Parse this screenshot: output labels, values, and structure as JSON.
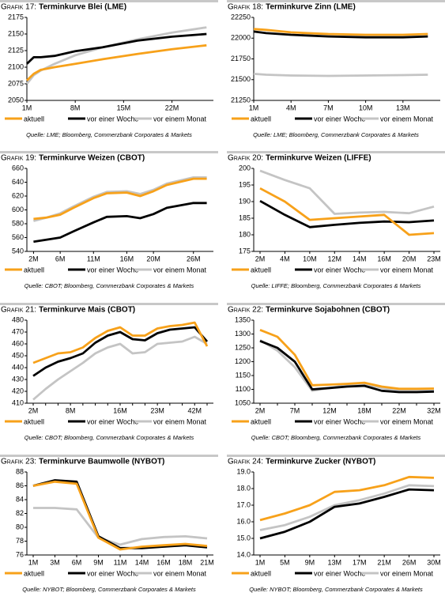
{
  "chart_data": [
    {
      "type": "line",
      "label": "Grafik 17:",
      "title": "Terminkurve Blei (LME)",
      "x": [
        1,
        2,
        3,
        5,
        8,
        12,
        17,
        22,
        27
      ],
      "xlim": [
        1,
        28
      ],
      "xticks": [
        {
          "value": 1,
          "label": "1M"
        },
        {
          "value": 8,
          "label": "8M"
        },
        {
          "value": 15,
          "label": "15M"
        },
        {
          "value": 22,
          "label": "22M"
        }
      ],
      "ylim": [
        2050,
        2175
      ],
      "yticks": [
        2050,
        2075,
        2100,
        2125,
        2150,
        2175
      ],
      "series": [
        {
          "name": "aktuell",
          "color": "#f7a11a",
          "values": [
            2080,
            2090,
            2096,
            2100,
            2105,
            2112,
            2120,
            2127,
            2133
          ]
        },
        {
          "name": "vor einer Woche",
          "color": "#000000",
          "values": [
            2105,
            2115,
            2115,
            2117,
            2124,
            2130,
            2140,
            2146,
            2150
          ]
        },
        {
          "name": "vor einem Monat",
          "color": "#c4c4c4",
          "values": [
            2075,
            2088,
            2095,
            2105,
            2118,
            2130,
            2142,
            2152,
            2160
          ]
        }
      ],
      "source": "Quelle: LME; Bloomberg, Commerzbank Corporates & Markets"
    },
    {
      "type": "line",
      "label": "Grafik 18:",
      "title": "Terminkurve Zinn (LME)",
      "x": [
        1,
        2,
        4,
        7,
        10,
        13,
        15
      ],
      "xlim": [
        1,
        16
      ],
      "xticks": [
        {
          "value": 1,
          "label": "1M"
        },
        {
          "value": 4,
          "label": "4M"
        },
        {
          "value": 7,
          "label": "7M"
        },
        {
          "value": 10,
          "label": "10M"
        },
        {
          "value": 13,
          "label": "13M"
        }
      ],
      "ylim": [
        21250,
        22250
      ],
      "yticks": [
        21250,
        21500,
        21750,
        22000,
        22250
      ],
      "series": [
        {
          "name": "aktuell",
          "color": "#f7a11a",
          "values": [
            22110,
            22100,
            22070,
            22050,
            22040,
            22040,
            22050
          ]
        },
        {
          "name": "vor einer Woche",
          "color": "#000000",
          "values": [
            22080,
            22060,
            22040,
            22020,
            22010,
            22010,
            22020
          ]
        },
        {
          "name": "vor einem Monat",
          "color": "#c4c4c4",
          "values": [
            21570,
            21560,
            21550,
            21545,
            21550,
            21555,
            21560
          ]
        }
      ],
      "source": "Quelle: LME; Bloomberg, Commerzbank Corporates & Markets"
    },
    {
      "type": "line",
      "label": "Grafik 19:",
      "title": "Terminkurve Weizen (CBOT)",
      "x": [
        2,
        4,
        6,
        8,
        11,
        13,
        16,
        18,
        20,
        22,
        26,
        28
      ],
      "xlim": [
        1,
        29
      ],
      "xticks": [
        {
          "value": 2,
          "label": "2M"
        },
        {
          "value": 6,
          "label": "6M"
        },
        {
          "value": 11,
          "label": "11M"
        },
        {
          "value": 16,
          "label": "16M"
        },
        {
          "value": 20,
          "label": "20M"
        },
        {
          "value": 26,
          "label": "26M"
        }
      ],
      "ylim": [
        540,
        660
      ],
      "yticks": [
        540,
        560,
        580,
        600,
        620,
        640,
        660
      ],
      "series": [
        {
          "name": "aktuell",
          "color": "#f7a11a",
          "values": [
            587,
            589,
            593,
            603,
            617,
            624,
            625,
            620,
            627,
            636,
            645,
            645
          ]
        },
        {
          "name": "vor einer Woche",
          "color": "#000000",
          "values": [
            554,
            557,
            560,
            569,
            582,
            590,
            591,
            588,
            594,
            603,
            610,
            610
          ]
        },
        {
          "name": "vor einem Monat",
          "color": "#c4c4c4",
          "values": [
            584,
            589,
            595,
            605,
            619,
            626,
            627,
            623,
            629,
            638,
            647,
            647
          ]
        }
      ],
      "source": "Quelle: CBOT; Bloomberg, Commerzbank Corporates & Markets"
    },
    {
      "type": "line",
      "label": "Grafik 20:",
      "title": "Terminkurve Weizen (LIFFE)",
      "categories": [
        "2M",
        "4M",
        "10M",
        "12M",
        "14M",
        "16M",
        "20M",
        "23M"
      ],
      "ylim": [
        175,
        200
      ],
      "yticks": [
        175,
        180,
        185,
        190,
        195,
        200
      ],
      "series": [
        {
          "name": "aktuell",
          "color": "#f7a11a",
          "values": [
            194,
            190,
            184.5,
            185,
            185.5,
            186,
            180,
            180.5
          ]
        },
        {
          "name": "vor einer Woche",
          "color": "#000000",
          "values": [
            190.2,
            186,
            182.3,
            183,
            183.6,
            184,
            183.8,
            184.3
          ]
        },
        {
          "name": "vor einem Monat",
          "color": "#c4c4c4",
          "values": [
            199.3,
            196.5,
            194,
            186.3,
            186.7,
            186.9,
            186.5,
            188.5
          ]
        }
      ],
      "source": "Quelle: LIFFE; Bloomberg, Commerzbank Corporates & Markets"
    },
    {
      "type": "line",
      "label": "Grafik 21:",
      "title": "Terminkurve Mais (CBOT)",
      "categories": [
        "2M",
        null,
        null,
        "8M",
        null,
        null,
        null,
        "16M",
        null,
        null,
        "23M",
        null,
        null,
        "42M",
        null
      ],
      "ylim": [
        410,
        480
      ],
      "yticks": [
        410,
        420,
        430,
        440,
        450,
        460,
        470,
        480
      ],
      "series": [
        {
          "name": "aktuell",
          "color": "#f7a11a",
          "values": [
            444,
            448,
            452,
            453,
            457,
            465,
            471,
            474,
            467,
            467,
            473,
            475,
            476,
            478,
            458
          ]
        },
        {
          "name": "vor einer Woche",
          "color": "#000000",
          "values": [
            433,
            440,
            445,
            448,
            452,
            461,
            467,
            470,
            464,
            463,
            469,
            472,
            473,
            474,
            462
          ]
        },
        {
          "name": "vor einem Monat",
          "color": "#c4c4c4",
          "values": [
            413,
            422,
            430,
            437,
            444,
            452,
            457,
            460,
            452,
            453,
            460,
            461,
            462,
            466,
            460
          ]
        }
      ],
      "source": "Quelle: CBOT; Bloomberg, Commerzbank Corporates & Markets"
    },
    {
      "type": "line",
      "label": "Grafik 22:",
      "title": "Terminkurve Sojabohnen (CBOT)",
      "categories": [
        "2M",
        null,
        "7M",
        null,
        "12M",
        null,
        "18M",
        null,
        "22M",
        null,
        "32M"
      ],
      "ylim": [
        1050,
        1350
      ],
      "yticks": [
        1050,
        1100,
        1150,
        1200,
        1250,
        1300,
        1350
      ],
      "series": [
        {
          "name": "aktuell",
          "color": "#f7a11a",
          "values": [
            1315,
            1290,
            1225,
            1115,
            1117,
            1120,
            1124,
            1110,
            1102,
            1102,
            1103
          ]
        },
        {
          "name": "vor einer Woche",
          "color": "#000000",
          "values": [
            1275,
            1250,
            1200,
            1100,
            1105,
            1110,
            1113,
            1095,
            1090,
            1090,
            1092
          ]
        },
        {
          "name": "vor einem Monat",
          "color": "#c4c4c4",
          "values": [
            1278,
            1240,
            1180,
            1095,
            1105,
            1115,
            1120,
            1105,
            1095,
            1095,
            1095
          ]
        }
      ],
      "source": "Quelle: CBOT; Bloomberg, Commerzbank Corporates & Markets"
    },
    {
      "type": "line",
      "label": "Grafik 23:",
      "title": "Terminkurve Baumwolle (NYBOT)",
      "categories": [
        "1M",
        "3M",
        "6M",
        "9M",
        "11M",
        "14M",
        "16M",
        "18M",
        "21M"
      ],
      "ylim": [
        76,
        88
      ],
      "yticks": [
        76,
        78,
        80,
        82,
        84,
        86,
        88
      ],
      "series": [
        {
          "name": "aktuell",
          "color": "#f7a11a",
          "values": [
            86.0,
            86.6,
            86.3,
            78.5,
            76.8,
            77.2,
            77.4,
            77.6,
            77.3
          ]
        },
        {
          "name": "vor einer Woche",
          "color": "#000000",
          "values": [
            86.0,
            86.8,
            86.6,
            78.7,
            77.0,
            77.0,
            77.2,
            77.4,
            77.1
          ]
        },
        {
          "name": "vor einem Monat",
          "color": "#c4c4c4",
          "values": [
            82.8,
            82.8,
            82.6,
            78.5,
            77.5,
            78.3,
            78.6,
            78.7,
            78.4
          ]
        }
      ],
      "source": "Quelle: NYBOT; Bloomberg, Commerzbank Corporates & Markets"
    },
    {
      "type": "line",
      "label": "Grafik 24:",
      "title": "Terminkurve Zucker (NYBOT)",
      "categories": [
        "1M",
        "5M",
        "9M",
        "13M",
        "17M",
        "21M",
        "26M",
        "30M"
      ],
      "ylim": [
        14,
        19
      ],
      "yticks": [
        {
          "value": 14,
          "label": "14.0"
        },
        {
          "value": 15,
          "label": "15.0"
        },
        {
          "value": 16,
          "label": "16.0"
        },
        {
          "value": 17,
          "label": "17.0"
        },
        {
          "value": 18,
          "label": "18.0"
        },
        {
          "value": 19,
          "label": "19.0"
        }
      ],
      "series": [
        {
          "name": "aktuell",
          "color": "#f7a11a",
          "values": [
            16.1,
            16.5,
            17.0,
            17.8,
            17.9,
            18.2,
            18.7,
            18.65
          ]
        },
        {
          "name": "vor einer Woche",
          "color": "#000000",
          "values": [
            15.0,
            15.4,
            16.0,
            16.9,
            17.1,
            17.5,
            17.95,
            17.9
          ]
        },
        {
          "name": "vor einem Monat",
          "color": "#c4c4c4",
          "values": [
            15.5,
            15.8,
            16.3,
            17.0,
            17.3,
            17.7,
            18.2,
            18.15
          ]
        }
      ],
      "source": "Quelle: NYBOT; Bloomberg, Commerzbank Corporates & Markets"
    }
  ]
}
